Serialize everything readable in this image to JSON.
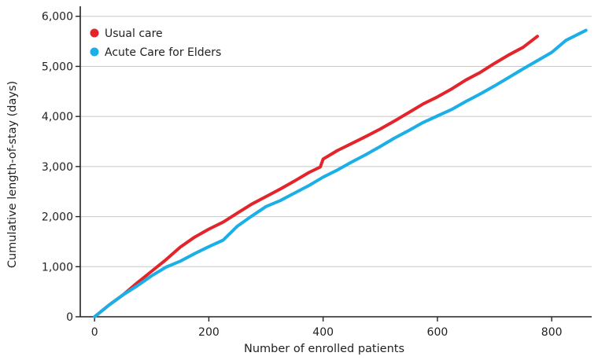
{
  "chart_data": {
    "type": "line",
    "xlabel": "Number of enrolled patients",
    "ylabel": "Cumulative length-of-stay (days)",
    "xlim": [
      -25,
      870
    ],
    "ylim": [
      0,
      6200
    ],
    "x_ticks": [
      0,
      200,
      400,
      600,
      800
    ],
    "x_tick_labels": [
      "0",
      "200",
      "400",
      "600",
      "800"
    ],
    "y_ticks": [
      0,
      1000,
      2000,
      3000,
      4000,
      5000,
      6000
    ],
    "y_tick_labels": [
      "0",
      "1,000",
      "2,000",
      "3,000",
      "4,000",
      "5,000",
      "6,000"
    ],
    "grid": "horizontal",
    "legend_position": "top-left",
    "series": [
      {
        "name": "Usual care",
        "color": "#e3242b",
        "x": [
          0,
          25,
          50,
          75,
          100,
          125,
          150,
          175,
          200,
          225,
          250,
          275,
          300,
          325,
          350,
          375,
          395,
          400,
          425,
          450,
          475,
          500,
          525,
          550,
          575,
          600,
          625,
          650,
          675,
          700,
          725,
          750,
          775
        ],
        "y": [
          0,
          230,
          440,
          680,
          910,
          1140,
          1390,
          1590,
          1750,
          1890,
          2070,
          2250,
          2400,
          2550,
          2710,
          2880,
          2990,
          3150,
          3320,
          3460,
          3600,
          3750,
          3910,
          4080,
          4250,
          4390,
          4550,
          4730,
          4880,
          5060,
          5230,
          5380,
          5600
        ]
      },
      {
        "name": "Acute Care for Elders",
        "color": "#1aafe6",
        "x": [
          0,
          25,
          50,
          75,
          100,
          125,
          150,
          175,
          200,
          225,
          250,
          275,
          300,
          325,
          350,
          375,
          400,
          425,
          450,
          475,
          500,
          525,
          550,
          575,
          600,
          625,
          650,
          675,
          700,
          725,
          750,
          800,
          825,
          860
        ],
        "y": [
          0,
          230,
          440,
          620,
          820,
          990,
          1110,
          1260,
          1400,
          1530,
          1810,
          2010,
          2200,
          2320,
          2470,
          2620,
          2790,
          2930,
          3090,
          3240,
          3400,
          3570,
          3720,
          3880,
          4010,
          4140,
          4300,
          4450,
          4610,
          4780,
          4950,
          5280,
          5520,
          5720
        ]
      }
    ]
  }
}
